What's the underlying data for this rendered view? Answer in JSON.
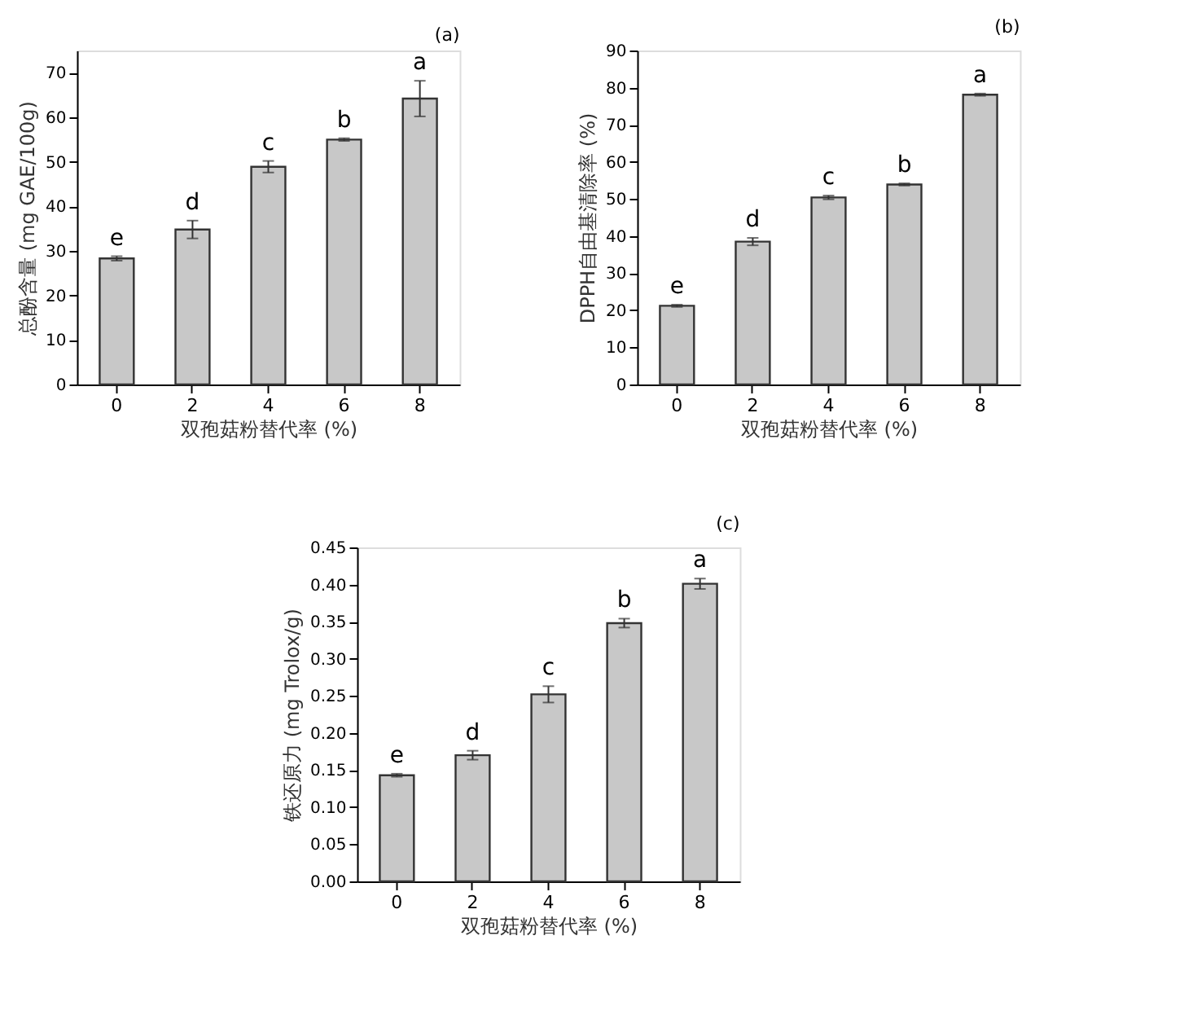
{
  "chart_data": [
    {
      "type": "bar",
      "title": "(a)",
      "xlabel": "双孢菇粉替代率 (%)",
      "ylabel": "总酚含量 (mg GAE/100g)",
      "categories": [
        "0",
        "2",
        "4",
        "6",
        "8"
      ],
      "values": [
        28.3,
        34.8,
        48.9,
        55.0,
        64.2
      ],
      "errors": [
        0.5,
        2,
        1.3,
        0.3,
        4
      ],
      "color": "#c8c8c8",
      "ylim": [
        0,
        75
      ],
      "yticks": [
        0,
        10,
        20,
        30,
        40,
        50,
        60,
        70
      ],
      "grid": false,
      "value_labels": [
        "e",
        "d",
        "c",
        "b",
        "a"
      ]
    },
    {
      "type": "bar",
      "title": "(b)",
      "xlabel": "双孢菇粉替代率 (%)",
      "ylabel": "DPPH自由基清除率 (%)",
      "categories": [
        "0",
        "2",
        "4",
        "6",
        "8"
      ],
      "values": [
        21.2,
        38.5,
        50.4,
        53.9,
        78.1
      ],
      "errors": [
        0.3,
        1,
        0.5,
        0.3,
        0.3
      ],
      "color": "#c8c8c8",
      "ylim": [
        0,
        90
      ],
      "yticks": [
        0,
        10,
        20,
        30,
        40,
        50,
        60,
        70,
        80,
        90
      ],
      "grid": false,
      "value_labels": [
        "e",
        "d",
        "c",
        "b",
        "a"
      ]
    },
    {
      "type": "bar",
      "title": "(c)",
      "xlabel": "双孢菇粉替代率 (%)",
      "ylabel": "铁还原力 (mg Trolox/g)",
      "categories": [
        "0",
        "2",
        "4",
        "6",
        "8"
      ],
      "values": [
        0.143,
        0.17,
        0.252,
        0.348,
        0.401
      ],
      "errors": [
        0.002,
        0.006,
        0.011,
        0.006,
        0.007
      ],
      "color": "#c8c8c8",
      "ylim": [
        0,
        0.45
      ],
      "yticks": [
        {
          "value": 0,
          "label": "0.00"
        },
        {
          "value": 0.05,
          "label": "0.05"
        },
        {
          "value": 0.1,
          "label": "0.10"
        },
        {
          "value": 0.15,
          "label": "0.15"
        },
        {
          "value": 0.2,
          "label": "0.20"
        },
        {
          "value": 0.25,
          "label": "0.25"
        },
        {
          "value": 0.3,
          "label": "0.30"
        },
        {
          "value": 0.35,
          "label": "0.35"
        },
        {
          "value": 0.4,
          "label": "0.40"
        },
        {
          "value": 0.45,
          "label": "0.45"
        }
      ],
      "grid": false,
      "value_labels": [
        "e",
        "d",
        "c",
        "b",
        "a"
      ]
    }
  ]
}
